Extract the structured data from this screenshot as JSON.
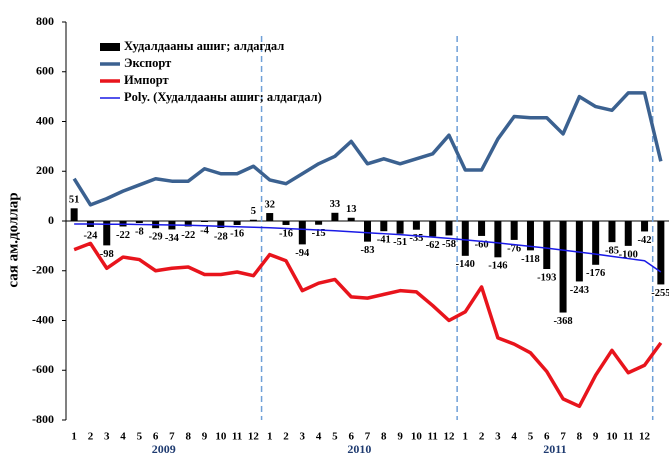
{
  "chart_data": {
    "type": "combo",
    "y_label": "сая ам.доллар",
    "categories": [
      1,
      2,
      3,
      4,
      5,
      6,
      7,
      8,
      9,
      10,
      11,
      12,
      1,
      2,
      3,
      4,
      5,
      6,
      7,
      8,
      9,
      10,
      11,
      12,
      1,
      2,
      3,
      4,
      5,
      6,
      7,
      8,
      9,
      10,
      11,
      12,
      null
    ],
    "years": [
      "2009",
      "2010",
      "2011"
    ],
    "ylim": [
      -800,
      800
    ],
    "yticks": [
      -800,
      -600,
      -400,
      -200,
      0,
      200,
      400,
      600,
      800
    ],
    "series": [
      {
        "name": "Худалдааны ашиг; алдагдал",
        "type": "bar",
        "color": "#000000",
        "values": [
          51,
          -24,
          -98,
          -22,
          -8,
          -29,
          -34,
          -22,
          -4,
          -28,
          -16,
          5,
          32,
          -16,
          -94,
          -15,
          33,
          13,
          -83,
          -41,
          -51,
          -35,
          -62,
          -58,
          -140,
          -60,
          -146,
          -76,
          -118,
          -193,
          -368,
          -243,
          -176,
          -85,
          -100,
          -42,
          -255
        ]
      },
      {
        "name": "Экспорт",
        "type": "line",
        "color": "#3b6190",
        "values": [
          170,
          65,
          90,
          120,
          145,
          170,
          160,
          160,
          210,
          190,
          190,
          220,
          165,
          150,
          190,
          230,
          260,
          320,
          230,
          250,
          230,
          250,
          270,
          345,
          205,
          205,
          330,
          420,
          415,
          415,
          350,
          500,
          460,
          445,
          515,
          515,
          240
        ]
      },
      {
        "name": "Импорт",
        "type": "line",
        "color": "#e8141c",
        "values": [
          -115,
          -90,
          -190,
          -145,
          -155,
          -200,
          -190,
          -185,
          -215,
          -215,
          -205,
          -220,
          -135,
          -160,
          -280,
          -250,
          -235,
          -305,
          -310,
          -295,
          -280,
          -285,
          -340,
          -400,
          -365,
          -265,
          -470,
          -495,
          -530,
          -605,
          -715,
          -745,
          -620,
          -520,
          -610,
          -580,
          -490
        ]
      },
      {
        "name": "Poly. (Худалдааны ашиг; алдагдал)",
        "type": "trend",
        "color": "#1a1ae6",
        "values": [
          -12,
          -12,
          -13,
          -13,
          -14,
          -15,
          -16,
          -17,
          -19,
          -21,
          -23,
          -25,
          -27,
          -30,
          -33,
          -36,
          -39,
          -43,
          -47,
          -51,
          -55,
          -60,
          -65,
          -70,
          -76,
          -82,
          -88,
          -95,
          -102,
          -109,
          -117,
          -125,
          -133,
          -142,
          -151,
          -160,
          -205
        ]
      }
    ]
  }
}
